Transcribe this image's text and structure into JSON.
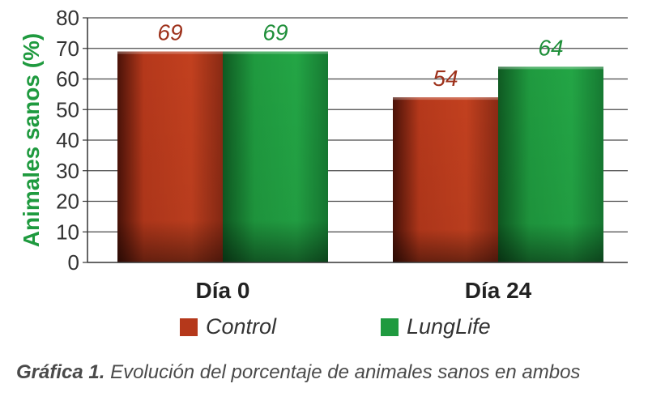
{
  "chart_data": {
    "type": "bar",
    "categories": [
      "Día 0",
      "Día 24"
    ],
    "series": [
      {
        "name": "Control",
        "values": [
          69,
          54
        ]
      },
      {
        "name": "LungLife",
        "values": [
          69,
          64
        ]
      }
    ],
    "ylabel": "Animales sanos (%)",
    "ylim": [
      0,
      80
    ],
    "yticks": [
      0,
      10,
      20,
      30,
      40,
      50,
      60,
      70,
      80
    ],
    "grid": true,
    "legend_position": "bottom",
    "colors": {
      "Control": "#b5381b",
      "LungLife": "#1f9a3f",
      "ylabel": "#1f9a3f",
      "label_Control": "#9e321c",
      "label_LungLife": "#1f8f3a"
    }
  },
  "caption": {
    "prefix": "Gráfica 1.",
    "text": " Evolución del porcentaje de animales sanos en ambos"
  }
}
